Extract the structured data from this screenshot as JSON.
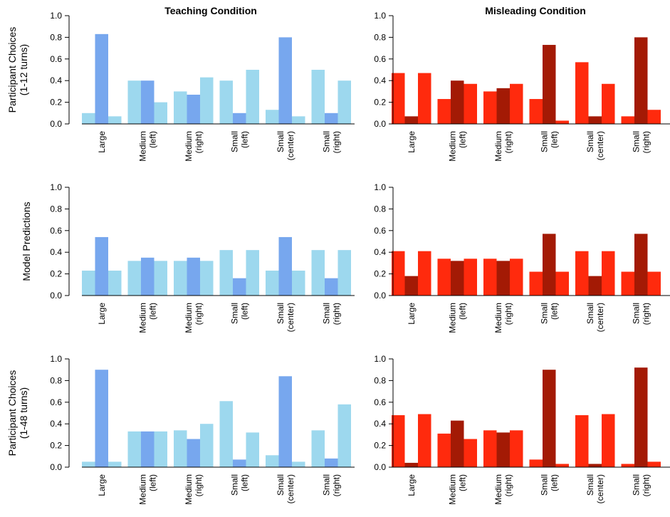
{
  "column_titles": [
    "Teaching Condition",
    "Misleading Condition"
  ],
  "row_labels": [
    [
      "Participant Choices",
      "(1-12 turns)"
    ],
    [
      "Model Predictions"
    ],
    [
      "Participant Choices",
      "(1-48 turns)"
    ]
  ],
  "colors": {
    "teach_light": "#9dd8ee",
    "teach_dark": "#77a7ee",
    "mislead_light": "#ff2a0d",
    "mislead_dark": "#a31a05",
    "axis": "#000000"
  },
  "chart_data": [
    {
      "type": "bar",
      "title": "Teaching Condition",
      "ylabel": "Participant Choices (1-12 turns)",
      "categories": [
        [
          "Large"
        ],
        [
          "Medium",
          "(left)"
        ],
        [
          "Medium",
          "(right)"
        ],
        [
          "Small",
          "(left)"
        ],
        [
          "Small",
          "(center)"
        ],
        [
          "Small",
          "(right)"
        ]
      ],
      "ylim": [
        0,
        1
      ],
      "yticks": [
        "0.0",
        "0.2",
        "0.4",
        "0.6",
        "0.8",
        "1.0"
      ],
      "series": [
        {
          "values": [
            0.1,
            0.4,
            0.3,
            0.4,
            0.13,
            0.5
          ]
        },
        {
          "values": [
            0.83,
            0.4,
            0.27,
            0.1,
            0.8,
            0.1
          ]
        },
        {
          "values": [
            0.07,
            0.2,
            0.43,
            0.5,
            0.07,
            0.4
          ]
        }
      ]
    },
    {
      "type": "bar",
      "title": "Misleading Condition",
      "ylabel": "",
      "categories": [
        [
          "Large"
        ],
        [
          "Medium",
          "(left)"
        ],
        [
          "Medium",
          "(right)"
        ],
        [
          "Small",
          "(left)"
        ],
        [
          "Small",
          "(center)"
        ],
        [
          "Small",
          "(right)"
        ]
      ],
      "ylim": [
        0,
        1
      ],
      "yticks": [
        "0.0",
        "0.2",
        "0.4",
        "0.6",
        "0.8",
        "1.0"
      ],
      "series": [
        {
          "values": [
            0.47,
            0.23,
            0.3,
            0.23,
            0.57,
            0.07
          ]
        },
        {
          "values": [
            0.07,
            0.4,
            0.33,
            0.73,
            0.07,
            0.8
          ]
        },
        {
          "values": [
            0.47,
            0.37,
            0.37,
            0.03,
            0.37,
            0.13
          ]
        }
      ]
    },
    {
      "type": "bar",
      "title": "",
      "ylabel": "Model Predictions",
      "categories": [
        [
          "Large"
        ],
        [
          "Medium",
          "(left)"
        ],
        [
          "Medium",
          "(right)"
        ],
        [
          "Small",
          "(left)"
        ],
        [
          "Small",
          "(center)"
        ],
        [
          "Small",
          "(right)"
        ]
      ],
      "ylim": [
        0,
        1
      ],
      "yticks": [
        "0.0",
        "0.2",
        "0.4",
        "0.6",
        "0.8",
        "1.0"
      ],
      "series": [
        {
          "values": [
            0.23,
            0.32,
            0.32,
            0.42,
            0.23,
            0.42
          ]
        },
        {
          "values": [
            0.54,
            0.35,
            0.35,
            0.16,
            0.54,
            0.16
          ]
        },
        {
          "values": [
            0.23,
            0.32,
            0.32,
            0.42,
            0.23,
            0.42
          ]
        }
      ]
    },
    {
      "type": "bar",
      "title": "",
      "ylabel": "",
      "categories": [
        [
          "Large"
        ],
        [
          "Medium",
          "(left)"
        ],
        [
          "Medium",
          "(right)"
        ],
        [
          "Small",
          "(left)"
        ],
        [
          "Small",
          "(center)"
        ],
        [
          "Small",
          "(right)"
        ]
      ],
      "ylim": [
        0,
        1
      ],
      "yticks": [
        "0.0",
        "0.2",
        "0.4",
        "0.6",
        "0.8",
        "1.0"
      ],
      "series": [
        {
          "values": [
            0.41,
            0.34,
            0.34,
            0.22,
            0.41,
            0.22
          ]
        },
        {
          "values": [
            0.18,
            0.32,
            0.32,
            0.57,
            0.18,
            0.57
          ]
        },
        {
          "values": [
            0.41,
            0.34,
            0.34,
            0.22,
            0.41,
            0.22
          ]
        }
      ]
    },
    {
      "type": "bar",
      "title": "",
      "ylabel": "Participant Choices (1-48 turns)",
      "categories": [
        [
          "Large"
        ],
        [
          "Medium",
          "(left)"
        ],
        [
          "Medium",
          "(right)"
        ],
        [
          "Small",
          "(left)"
        ],
        [
          "Small",
          "(center)"
        ],
        [
          "Small",
          "(right)"
        ]
      ],
      "ylim": [
        0,
        1
      ],
      "yticks": [
        "0.0",
        "0.2",
        "0.4",
        "0.6",
        "0.8",
        "1.0"
      ],
      "series": [
        {
          "values": [
            0.05,
            0.33,
            0.34,
            0.61,
            0.11,
            0.34
          ]
        },
        {
          "values": [
            0.9,
            0.33,
            0.26,
            0.07,
            0.84,
            0.08
          ]
        },
        {
          "values": [
            0.05,
            0.33,
            0.4,
            0.32,
            0.05,
            0.58
          ]
        }
      ]
    },
    {
      "type": "bar",
      "title": "",
      "ylabel": "",
      "categories": [
        [
          "Large"
        ],
        [
          "Medium",
          "(left)"
        ],
        [
          "Medium",
          "(right)"
        ],
        [
          "Small",
          "(left)"
        ],
        [
          "Small",
          "(center)"
        ],
        [
          "Small",
          "(right)"
        ]
      ],
      "ylim": [
        0,
        1
      ],
      "yticks": [
        "0.0",
        "0.2",
        "0.4",
        "0.6",
        "0.8",
        "1.0"
      ],
      "series": [
        {
          "values": [
            0.48,
            0.31,
            0.34,
            0.07,
            0.48,
            0.03
          ]
        },
        {
          "values": [
            0.04,
            0.43,
            0.32,
            0.9,
            0.03,
            0.92
          ]
        },
        {
          "values": [
            0.49,
            0.26,
            0.34,
            0.03,
            0.49,
            0.05
          ]
        }
      ]
    }
  ]
}
